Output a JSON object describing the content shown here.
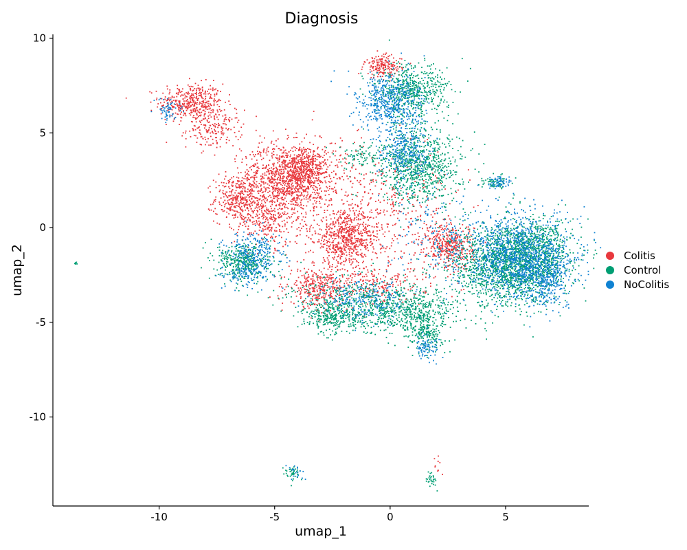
{
  "chart_data": {
    "type": "scatter",
    "title": "Diagnosis",
    "xlabel": "umap_1",
    "ylabel": "umap_2",
    "xlim": [
      -14.6,
      8.6
    ],
    "ylim": [
      -14.7,
      10.2
    ],
    "xticks": [
      -10,
      -5,
      0,
      5
    ],
    "yticks": [
      10,
      5,
      0,
      -5,
      -10
    ],
    "grid": false,
    "legend_position": "right",
    "series": [
      {
        "name": "Colitis",
        "color": "#E8383D",
        "clusters": [
          {
            "x": -8.6,
            "y": 6.6,
            "sx": 0.7,
            "sy": 0.5,
            "n": 420
          },
          {
            "x": -7.6,
            "y": 5.2,
            "sx": 0.6,
            "sy": 0.5,
            "n": 180
          },
          {
            "x": -6.6,
            "y": 1.5,
            "sx": 0.5,
            "sy": 0.6,
            "n": 320
          },
          {
            "x": -4.6,
            "y": 2.6,
            "sx": 0.9,
            "sy": 0.9,
            "n": 900
          },
          {
            "x": -3.6,
            "y": 3.1,
            "sx": 0.5,
            "sy": 0.6,
            "n": 380
          },
          {
            "x": -5.3,
            "y": 0.4,
            "sx": 0.7,
            "sy": 0.7,
            "n": 260
          },
          {
            "x": -1.9,
            "y": -0.6,
            "sx": 0.7,
            "sy": 0.7,
            "n": 620
          },
          {
            "x": -3.2,
            "y": -3.2,
            "sx": 0.6,
            "sy": 0.5,
            "n": 300
          },
          {
            "x": 2.6,
            "y": -1.0,
            "sx": 0.5,
            "sy": 0.6,
            "n": 360
          },
          {
            "x": -0.3,
            "y": 8.5,
            "sx": 0.4,
            "sy": 0.3,
            "n": 180
          },
          {
            "x": -2.5,
            "y": 1.8,
            "sx": 1.4,
            "sy": 1.6,
            "n": 320
          },
          {
            "x": 0.6,
            "y": 0.8,
            "sx": 1.3,
            "sy": 1.5,
            "n": 280
          },
          {
            "x": -1.0,
            "y": -3.0,
            "sx": 1.2,
            "sy": 0.6,
            "n": 260
          },
          {
            "x": 2.1,
            "y": -12.5,
            "sx": 0.1,
            "sy": 0.4,
            "n": 10
          }
        ]
      },
      {
        "name": "Control",
        "color": "#009E73",
        "clusters": [
          {
            "x": 5.0,
            "y": -2.0,
            "sx": 1.2,
            "sy": 1.1,
            "n": 1500
          },
          {
            "x": 6.3,
            "y": -1.3,
            "sx": 0.8,
            "sy": 0.9,
            "n": 600
          },
          {
            "x": 1.3,
            "y": 3.3,
            "sx": 0.9,
            "sy": 1.0,
            "n": 850
          },
          {
            "x": 0.9,
            "y": 7.2,
            "sx": 0.8,
            "sy": 0.7,
            "n": 550
          },
          {
            "x": 0.6,
            "y": -4.4,
            "sx": 1.2,
            "sy": 0.6,
            "n": 650
          },
          {
            "x": -2.5,
            "y": -4.7,
            "sx": 0.6,
            "sy": 0.4,
            "n": 300
          },
          {
            "x": -6.3,
            "y": -1.8,
            "sx": 0.6,
            "sy": 0.5,
            "n": 380
          },
          {
            "x": 1.6,
            "y": -5.6,
            "sx": 0.4,
            "sy": 0.5,
            "n": 180
          },
          {
            "x": -1.2,
            "y": 3.8,
            "sx": 0.5,
            "sy": 0.3,
            "n": 80
          },
          {
            "x": 4.6,
            "y": 2.4,
            "sx": 0.3,
            "sy": 0.2,
            "n": 60
          },
          {
            "x": -2.0,
            "y": -3.6,
            "sx": 1.4,
            "sy": 0.6,
            "n": 220
          },
          {
            "x": -4.2,
            "y": -13.0,
            "sx": 0.25,
            "sy": 0.22,
            "n": 40
          },
          {
            "x": 1.8,
            "y": -13.3,
            "sx": 0.15,
            "sy": 0.2,
            "n": 30
          },
          {
            "x": -13.6,
            "y": -1.9,
            "sx": 0.03,
            "sy": 0.05,
            "n": 6
          }
        ]
      },
      {
        "name": "NoColitis",
        "color": "#0F82D2",
        "clusters": [
          {
            "x": 5.5,
            "y": -1.5,
            "sx": 1.2,
            "sy": 1.1,
            "n": 1100
          },
          {
            "x": 6.7,
            "y": -2.5,
            "sx": 0.6,
            "sy": 0.8,
            "n": 350
          },
          {
            "x": 0.0,
            "y": 6.6,
            "sx": 0.7,
            "sy": 0.8,
            "n": 500
          },
          {
            "x": 0.6,
            "y": 4.0,
            "sx": 0.6,
            "sy": 0.8,
            "n": 300
          },
          {
            "x": -5.8,
            "y": -1.4,
            "sx": 0.6,
            "sy": 0.6,
            "n": 250
          },
          {
            "x": -6.3,
            "y": -2.5,
            "sx": 0.5,
            "sy": 0.3,
            "n": 100
          },
          {
            "x": -1.1,
            "y": -3.8,
            "sx": 1.0,
            "sy": 0.6,
            "n": 220
          },
          {
            "x": -9.6,
            "y": 6.2,
            "sx": 0.3,
            "sy": 0.3,
            "n": 60
          },
          {
            "x": 4.7,
            "y": 2.4,
            "sx": 0.3,
            "sy": 0.2,
            "n": 60
          },
          {
            "x": 1.6,
            "y": -6.3,
            "sx": 0.3,
            "sy": 0.3,
            "n": 80
          },
          {
            "x": 2.0,
            "y": -0.5,
            "sx": 1.0,
            "sy": 1.2,
            "n": 150
          },
          {
            "x": -4.1,
            "y": -12.9,
            "sx": 0.2,
            "sy": 0.2,
            "n": 20
          }
        ]
      }
    ]
  }
}
